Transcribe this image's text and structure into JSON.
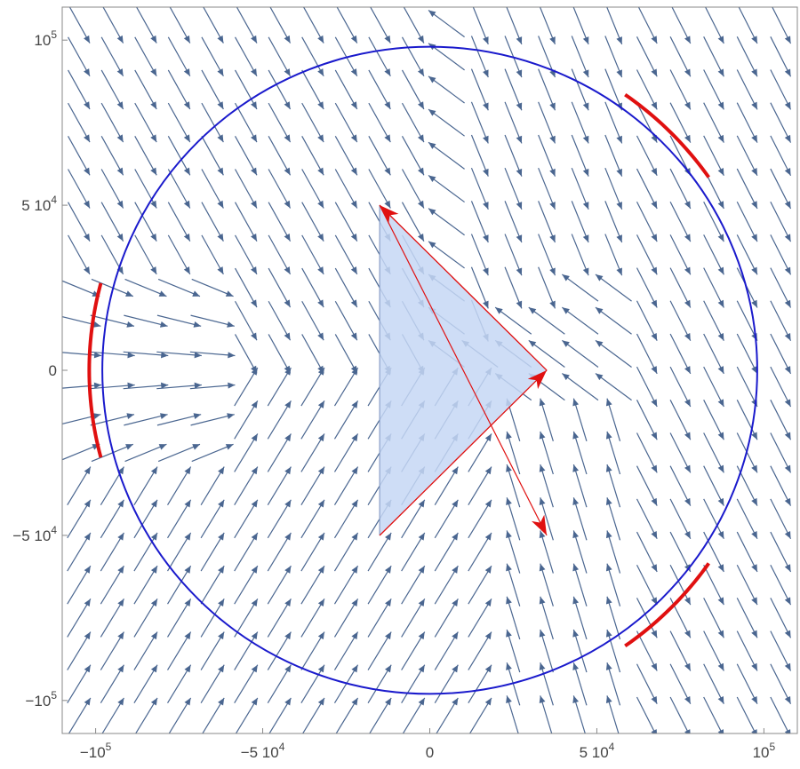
{
  "chart_data": {
    "type": "streamplot",
    "xlim": [
      -110000,
      110000
    ],
    "ylim": [
      -110000,
      110000
    ],
    "x_ticks": [
      {
        "value": -100000,
        "mantissa": "−1",
        "base": "0",
        "exp": "5"
      },
      {
        "value": -50000,
        "mantissa": "−5 1",
        "base": "0",
        "exp": "4"
      },
      {
        "value": 0,
        "mantissa": "0",
        "base": "",
        "exp": ""
      },
      {
        "value": 50000,
        "mantissa": "5 1",
        "base": "0",
        "exp": "4"
      },
      {
        "value": 100000,
        "mantissa": "1",
        "base": "0",
        "exp": "5"
      }
    ],
    "y_ticks": [
      {
        "value": 100000,
        "mantissa": "1",
        "base": "0",
        "exp": "5"
      },
      {
        "value": 50000,
        "mantissa": "5 1",
        "base": "0",
        "exp": "4"
      },
      {
        "value": 0,
        "mantissa": "0",
        "base": "",
        "exp": ""
      },
      {
        "value": -50000,
        "mantissa": "−5 1",
        "base": "0",
        "exp": "4"
      },
      {
        "value": -100000,
        "mantissa": "−1",
        "base": "0",
        "exp": "5"
      }
    ],
    "circle": {
      "center": [
        0,
        0
      ],
      "radius": 98000,
      "color": "#1a1acc"
    },
    "triangle": {
      "vertices": [
        [
          -15000,
          50000
        ],
        [
          35000,
          0
        ],
        [
          -15000,
          -50000
        ]
      ],
      "fill": "#c6d7f5",
      "edge": "#d94040"
    },
    "red_vectors": [
      {
        "from": [
          -15000,
          50000
        ],
        "to": [
          35000,
          -50000
        ]
      },
      {
        "from": [
          35000,
          0
        ],
        "to": [
          -15000,
          50000
        ]
      },
      {
        "from": [
          -15000,
          -50000
        ],
        "to": [
          35000,
          0
        ]
      }
    ],
    "red_arcs": [
      {
        "start_deg": 165,
        "end_deg": 195
      },
      {
        "start_deg": 35,
        "end_deg": 55
      },
      {
        "start_deg": -55,
        "end_deg": -35
      }
    ],
    "stream_color": "#4a6690",
    "grid": false
  }
}
